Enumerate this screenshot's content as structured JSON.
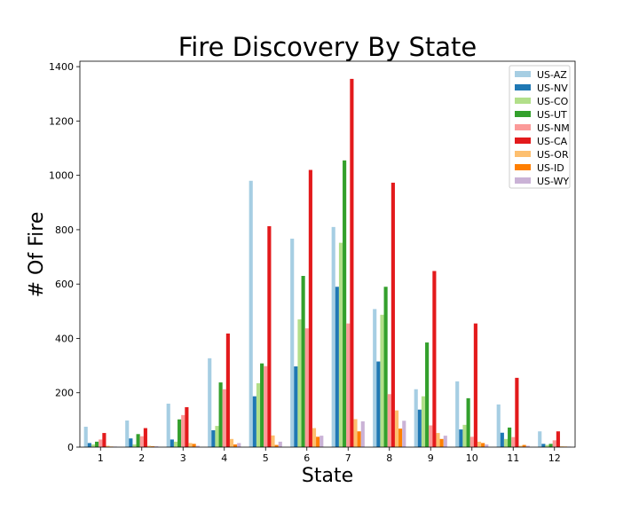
{
  "chart_data": {
    "type": "bar",
    "title": "Fire Discovery By State",
    "xlabel": "State",
    "ylabel": "# Of Fire",
    "ylim": [
      0,
      1420
    ],
    "yticks": [
      0,
      200,
      400,
      600,
      800,
      1000,
      1200,
      1400
    ],
    "categories": [
      "1",
      "2",
      "3",
      "4",
      "5",
      "6",
      "7",
      "8",
      "9",
      "10",
      "11",
      "12"
    ],
    "legend_position": "top-right",
    "series": [
      {
        "name": "US-AZ",
        "color": "#a6cee3",
        "values": [
          75,
          98,
          160,
          327,
          980,
          767,
          810,
          508,
          213,
          242,
          157,
          58
        ]
      },
      {
        "name": "US-NV",
        "color": "#1f78b4",
        "values": [
          15,
          32,
          28,
          62,
          187,
          297,
          590,
          315,
          138,
          65,
          53,
          12
        ]
      },
      {
        "name": "US-CO",
        "color": "#b2df8a",
        "values": [
          10,
          10,
          20,
          78,
          235,
          470,
          752,
          487,
          187,
          82,
          30,
          8
        ]
      },
      {
        "name": "US-UT",
        "color": "#33a02c",
        "values": [
          20,
          48,
          102,
          238,
          308,
          630,
          1055,
          590,
          385,
          180,
          72,
          12
        ]
      },
      {
        "name": "US-NM",
        "color": "#fb9a99",
        "values": [
          28,
          40,
          118,
          213,
          298,
          437,
          455,
          195,
          80,
          38,
          37,
          25
        ]
      },
      {
        "name": "US-CA",
        "color": "#e31a1c",
        "values": [
          52,
          70,
          147,
          418,
          813,
          1020,
          1355,
          973,
          648,
          455,
          255,
          58
        ]
      },
      {
        "name": "US-OR",
        "color": "#fdbf6f",
        "values": [
          5,
          5,
          15,
          30,
          43,
          70,
          103,
          135,
          52,
          20,
          5,
          3
        ]
      },
      {
        "name": "US-ID",
        "color": "#ff7f00",
        "values": [
          2,
          3,
          12,
          10,
          8,
          38,
          58,
          68,
          30,
          15,
          8,
          2
        ]
      },
      {
        "name": "US-WY",
        "color": "#cab2d6",
        "values": [
          2,
          3,
          5,
          15,
          20,
          42,
          95,
          97,
          42,
          10,
          5,
          2
        ]
      }
    ]
  }
}
